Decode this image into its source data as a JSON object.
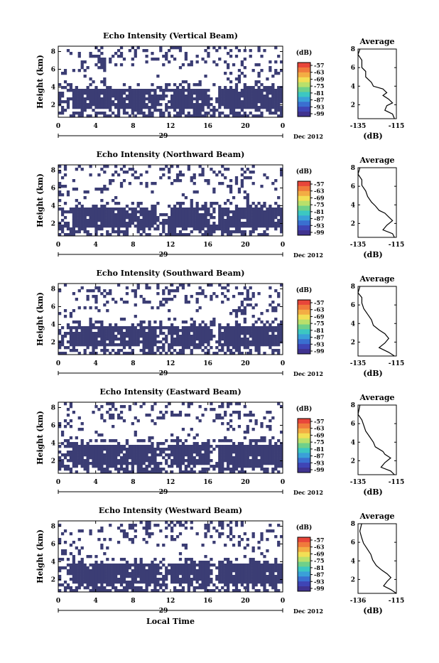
{
  "chart_data": [
    {
      "type": "heatmap",
      "title": "Echo Intensity (Vertical Beam)",
      "ylabel": "Height (km)",
      "yticks": [
        "2",
        "4",
        "6",
        "8"
      ],
      "xticks": [
        "0",
        "4",
        "8",
        "12",
        "16",
        "20",
        "0"
      ],
      "xdate": "29",
      "month_label": "Dec 2012",
      "colorbar": {
        "unit": "(dB)",
        "ticks": [
          "-57",
          "-63",
          "-69",
          "-75",
          "-81",
          "-87",
          "-93",
          "-99"
        ]
      },
      "profile": {
        "title": "Average",
        "xticks": [
          "-135",
          "-115"
        ],
        "yticks": [
          "2",
          "4",
          "6",
          "8"
        ],
        "xlabel": "(dB)",
        "xlim": [
          -135,
          -115
        ],
        "ylim": [
          0.5,
          8
        ],
        "points": [
          [
            -116,
            0.5
          ],
          [
            -117,
            1.0
          ],
          [
            -121,
            1.4
          ],
          [
            -120,
            1.9
          ],
          [
            -117,
            2.2
          ],
          [
            -119,
            2.6
          ],
          [
            -122,
            3.0
          ],
          [
            -120,
            3.3
          ],
          [
            -122,
            3.7
          ],
          [
            -127,
            4.0
          ],
          [
            -128,
            4.4
          ],
          [
            -131,
            5.0
          ],
          [
            -131,
            5.6
          ],
          [
            -133,
            6.0
          ],
          [
            -133,
            6.8
          ],
          [
            -135,
            7.4
          ],
          [
            -134,
            8.0
          ]
        ]
      }
    },
    {
      "type": "heatmap",
      "title": "Echo Intensity (Northward Beam)",
      "ylabel": "Height (km)",
      "yticks": [
        "2",
        "4",
        "6",
        "8"
      ],
      "xticks": [
        "0",
        "4",
        "8",
        "12",
        "16",
        "20",
        "0"
      ],
      "xdate": "29",
      "month_label": "Dec 2012",
      "colorbar": {
        "unit": "(dB)",
        "ticks": [
          "-57",
          "-63",
          "-69",
          "-75",
          "-81",
          "-87",
          "-93",
          "-99"
        ]
      },
      "profile": {
        "title": "Average",
        "xticks": [
          "-135",
          "-115"
        ],
        "yticks": [
          "2",
          "4",
          "6",
          "8"
        ],
        "xlabel": "(dB)",
        "xlim": [
          -135,
          -115
        ],
        "ylim": [
          0.5,
          8
        ],
        "points": [
          [
            -116,
            0.5
          ],
          [
            -117,
            0.9
          ],
          [
            -122,
            1.3
          ],
          [
            -120,
            1.8
          ],
          [
            -117,
            2.3
          ],
          [
            -119,
            2.7
          ],
          [
            -121,
            3.1
          ],
          [
            -124,
            3.4
          ],
          [
            -126,
            3.9
          ],
          [
            -128,
            4.3
          ],
          [
            -130,
            4.9
          ],
          [
            -131,
            5.5
          ],
          [
            -133,
            6.1
          ],
          [
            -133,
            6.7
          ],
          [
            -135,
            7.3
          ],
          [
            -134,
            8.0
          ]
        ]
      }
    },
    {
      "type": "heatmap",
      "title": "Echo Intensity (Southward Beam)",
      "ylabel": "Height (km)",
      "yticks": [
        "2",
        "4",
        "6",
        "8"
      ],
      "xticks": [
        "0",
        "4",
        "8",
        "12",
        "16",
        "20",
        "0"
      ],
      "xdate": "29",
      "month_label": "Dec 2012",
      "colorbar": {
        "unit": "(dB)",
        "ticks": [
          "-57",
          "-63",
          "-69",
          "-75",
          "-81",
          "-87",
          "-93",
          "-99"
        ]
      },
      "profile": {
        "title": "Average",
        "xticks": [
          "-135",
          "-115"
        ],
        "yticks": [
          "2",
          "4",
          "6",
          "8"
        ],
        "xlabel": "(dB)",
        "xlim": [
          -135,
          -115
        ],
        "ylim": [
          0.5,
          8
        ],
        "points": [
          [
            -116,
            0.5
          ],
          [
            -119,
            0.9
          ],
          [
            -124,
            1.4
          ],
          [
            -121,
            1.9
          ],
          [
            -119,
            2.4
          ],
          [
            -121,
            2.9
          ],
          [
            -124,
            3.3
          ],
          [
            -127,
            3.8
          ],
          [
            -128,
            4.4
          ],
          [
            -130,
            5.0
          ],
          [
            -132,
            5.6
          ],
          [
            -133,
            6.2
          ],
          [
            -133,
            6.8
          ],
          [
            -135,
            7.3
          ],
          [
            -134,
            8.0
          ]
        ]
      }
    },
    {
      "type": "heatmap",
      "title": "Echo Intensity (Eastward Beam)",
      "ylabel": "Height (km)",
      "yticks": [
        "2",
        "4",
        "6",
        "8"
      ],
      "xticks": [
        "0",
        "4",
        "8",
        "12",
        "16",
        "20",
        "0"
      ],
      "xdate": "29",
      "month_label": "Dec 2012",
      "colorbar": {
        "unit": "(dB)",
        "ticks": [
          "-57",
          "-63",
          "-69",
          "-75",
          "-81",
          "-87",
          "-93",
          "-99"
        ]
      },
      "profile": {
        "title": "Average",
        "xticks": [
          "-135",
          "-115"
        ],
        "yticks": [
          "2",
          "4",
          "6",
          "8"
        ],
        "xlabel": "(dB)",
        "xlim": [
          -135,
          -115
        ],
        "ylim": [
          0.5,
          8
        ],
        "points": [
          [
            -116,
            0.5
          ],
          [
            -118,
            0.9
          ],
          [
            -123,
            1.3
          ],
          [
            -121,
            1.8
          ],
          [
            -118,
            2.3
          ],
          [
            -121,
            2.7
          ],
          [
            -122,
            3.0
          ],
          [
            -126,
            3.5
          ],
          [
            -127,
            4.0
          ],
          [
            -129,
            4.6
          ],
          [
            -131,
            5.2
          ],
          [
            -132,
            5.8
          ],
          [
            -133,
            6.4
          ],
          [
            -135,
            7.0
          ],
          [
            -134,
            8.0
          ]
        ]
      }
    },
    {
      "type": "heatmap",
      "title": "Echo Intensity (Westward Beam)",
      "ylabel": "Height (km)",
      "yticks": [
        "2",
        "4",
        "6",
        "8"
      ],
      "xticks": [
        "0",
        "4",
        "8",
        "12",
        "16",
        "20",
        "0"
      ],
      "xdate": "29",
      "month_label": "Dec 2012",
      "xlabel": "Local Time",
      "colorbar": {
        "unit": "(dB)",
        "ticks": [
          "-57",
          "-63",
          "-69",
          "-75",
          "-81",
          "-87",
          "-93",
          "-99"
        ]
      },
      "profile": {
        "title": "Average",
        "xticks": [
          "-136",
          "-115"
        ],
        "yticks": [
          "2",
          "4",
          "6",
          "8"
        ],
        "xlabel": "(dB)",
        "xlim": [
          -136,
          -115
        ],
        "ylim": [
          0.5,
          8
        ],
        "points": [
          [
            -115,
            0.5
          ],
          [
            -118,
            0.9
          ],
          [
            -122,
            1.3
          ],
          [
            -120,
            1.8
          ],
          [
            -118,
            2.2
          ],
          [
            -120,
            2.6
          ],
          [
            -123,
            3.0
          ],
          [
            -126,
            3.5
          ],
          [
            -128,
            4.1
          ],
          [
            -129,
            4.7
          ],
          [
            -131,
            5.3
          ],
          [
            -133,
            5.9
          ],
          [
            -134,
            6.5
          ],
          [
            -135,
            7.2
          ],
          [
            -134,
            8.0
          ]
        ]
      }
    }
  ]
}
